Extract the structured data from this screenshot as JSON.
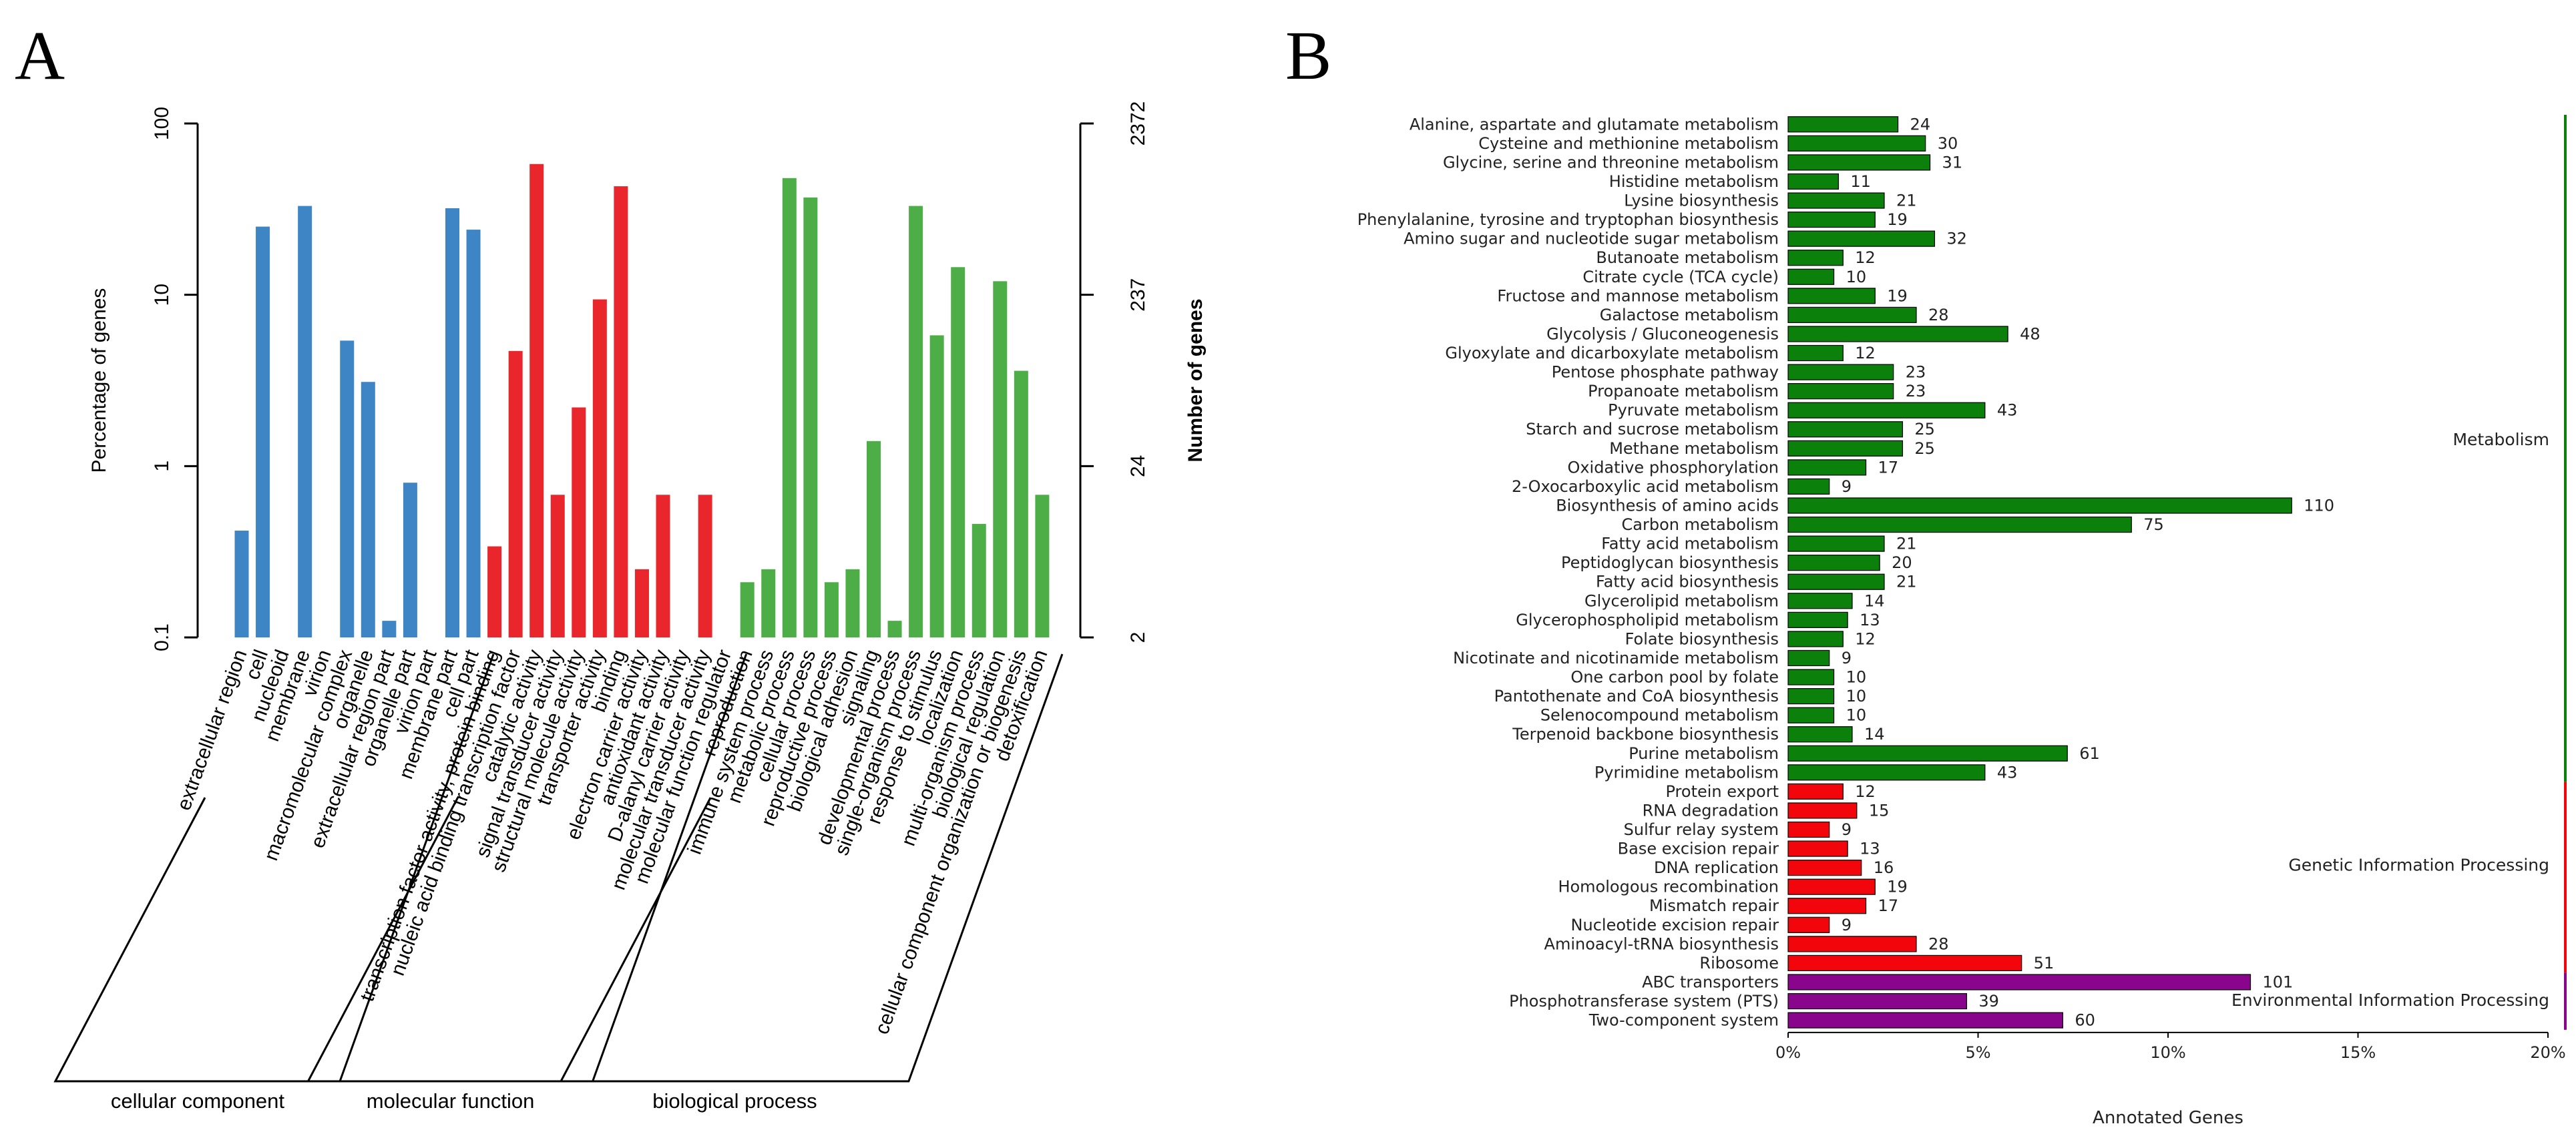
{
  "panels": {
    "a": "A",
    "b": "B"
  },
  "chart_data": [
    {
      "type": "bar",
      "title": "",
      "ylabel": "Percentage of genes",
      "y2label": "Number of genes",
      "yscale": "log",
      "ylim": [
        0.1,
        100
      ],
      "yticks": [
        "0.1",
        "1",
        "10",
        "100"
      ],
      "y2ticks": [
        "2",
        "24",
        "237",
        "2372"
      ],
      "colors": {
        "cellular component": "#3E85C6",
        "molecular function": "#E8262B",
        "biological process": "#4DAE48"
      },
      "groups": [
        {
          "name": "cellular component",
          "categories": [
            "extracellular region",
            "cell",
            "nucleoid",
            "membrane",
            "virion",
            "macromolecular complex",
            "organelle",
            "extracellular region part",
            "organelle part",
            "virion part",
            "membrane part",
            "cell part"
          ],
          "values": [
            0.42,
            25,
            0.1,
            33,
            0.1,
            5.4,
            3.1,
            0.125,
            0.8,
            0.1,
            32,
            24
          ]
        },
        {
          "name": "molecular function",
          "categories": [
            "transcription factor activity, protein binding",
            "nucleic acid binding transcription factor",
            "catalytic activity",
            "signal transducer activity",
            "structural molecule activity",
            "transporter activity",
            "binding",
            "electron carrier activity",
            "antioxidant activity",
            "D-alanyl carrier activity",
            "molecular transducer activity",
            "molecular function regulator"
          ],
          "values": [
            0.34,
            4.7,
            58,
            0.68,
            2.2,
            9.4,
            43,
            0.25,
            0.68,
            0.1,
            0.68,
            0.1
          ]
        },
        {
          "name": "biological process",
          "categories": [
            "reproduction",
            "immune system process",
            "metabolic process",
            "cellular process",
            "reproductive process",
            "biological adhesion",
            "signaling",
            "developmental process",
            "single-organism process",
            "response to stimulus",
            "localization",
            "multi-organism process",
            "biological regulation",
            "cellular component organization or biogenesis",
            "detoxification"
          ],
          "values": [
            0.21,
            0.25,
            48,
            37,
            0.21,
            0.25,
            1.4,
            0.125,
            33,
            5.8,
            14.5,
            0.46,
            12,
            3.6,
            0.68
          ]
        }
      ]
    },
    {
      "type": "bar",
      "orientation": "horizontal",
      "xlabel": "Annotated Genes",
      "xlim": [
        0,
        20
      ],
      "xticks": [
        "0%",
        "5%",
        "10%",
        "15%",
        "20%"
      ],
      "value_unit": "genes",
      "percent_per_gene": 0.1205,
      "categories": [
        {
          "name": "Metabolism",
          "color": "#0B800B",
          "items": [
            {
              "label": "Alanine, aspartate and glutamate metabolism",
              "value": 24
            },
            {
              "label": "Cysteine and methionine metabolism",
              "value": 30
            },
            {
              "label": "Glycine, serine and threonine metabolism",
              "value": 31
            },
            {
              "label": "Histidine metabolism",
              "value": 11
            },
            {
              "label": "Lysine biosynthesis",
              "value": 21
            },
            {
              "label": "Phenylalanine, tyrosine and tryptophan biosynthesis",
              "value": 19
            },
            {
              "label": "Amino sugar and nucleotide sugar metabolism",
              "value": 32
            },
            {
              "label": "Butanoate metabolism",
              "value": 12
            },
            {
              "label": "Citrate cycle (TCA cycle)",
              "value": 10
            },
            {
              "label": "Fructose and mannose metabolism",
              "value": 19
            },
            {
              "label": "Galactose metabolism",
              "value": 28
            },
            {
              "label": "Glycolysis / Gluconeogenesis",
              "value": 48
            },
            {
              "label": "Glyoxylate and dicarboxylate metabolism",
              "value": 12
            },
            {
              "label": "Pentose phosphate pathway",
              "value": 23
            },
            {
              "label": "Propanoate metabolism",
              "value": 23
            },
            {
              "label": "Pyruvate metabolism",
              "value": 43
            },
            {
              "label": "Starch and sucrose metabolism",
              "value": 25
            },
            {
              "label": "Methane metabolism",
              "value": 25
            },
            {
              "label": "Oxidative phosphorylation",
              "value": 17
            },
            {
              "label": "2-Oxocarboxylic acid metabolism",
              "value": 9
            },
            {
              "label": "Biosynthesis of amino acids",
              "value": 110
            },
            {
              "label": "Carbon metabolism",
              "value": 75
            },
            {
              "label": "Fatty acid metabolism",
              "value": 21
            },
            {
              "label": "Peptidoglycan biosynthesis",
              "value": 20
            },
            {
              "label": "Fatty acid biosynthesis",
              "value": 21
            },
            {
              "label": "Glycerolipid metabolism",
              "value": 14
            },
            {
              "label": "Glycerophospholipid metabolism",
              "value": 13
            },
            {
              "label": "Folate biosynthesis",
              "value": 12
            },
            {
              "label": "Nicotinate and nicotinamide metabolism",
              "value": 9
            },
            {
              "label": "One carbon pool by folate",
              "value": 10
            },
            {
              "label": "Pantothenate and CoA biosynthesis",
              "value": 10
            },
            {
              "label": "Selenocompound metabolism",
              "value": 10
            },
            {
              "label": "Terpenoid backbone biosynthesis",
              "value": 14
            },
            {
              "label": "Purine metabolism",
              "value": 61
            },
            {
              "label": "Pyrimidine metabolism",
              "value": 43
            }
          ]
        },
        {
          "name": "Genetic Information Processing",
          "color": "#F2060C",
          "items": [
            {
              "label": "Protein export",
              "value": 12
            },
            {
              "label": "RNA degradation",
              "value": 15
            },
            {
              "label": "Sulfur relay system",
              "value": 9
            },
            {
              "label": "Base excision repair",
              "value": 13
            },
            {
              "label": "DNA replication",
              "value": 16
            },
            {
              "label": "Homologous recombination",
              "value": 19
            },
            {
              "label": "Mismatch repair",
              "value": 17
            },
            {
              "label": "Nucleotide excision repair",
              "value": 9
            },
            {
              "label": "Aminoacyl-tRNA biosynthesis",
              "value": 28
            },
            {
              "label": "Ribosome",
              "value": 51
            }
          ]
        },
        {
          "name": "Environmental Information Processing",
          "color": "#88058C",
          "items": [
            {
              "label": "ABC transporters",
              "value": 101
            },
            {
              "label": "Phosphotransferase system (PTS)",
              "value": 39
            },
            {
              "label": "Two-component system",
              "value": 60
            }
          ]
        }
      ]
    }
  ]
}
